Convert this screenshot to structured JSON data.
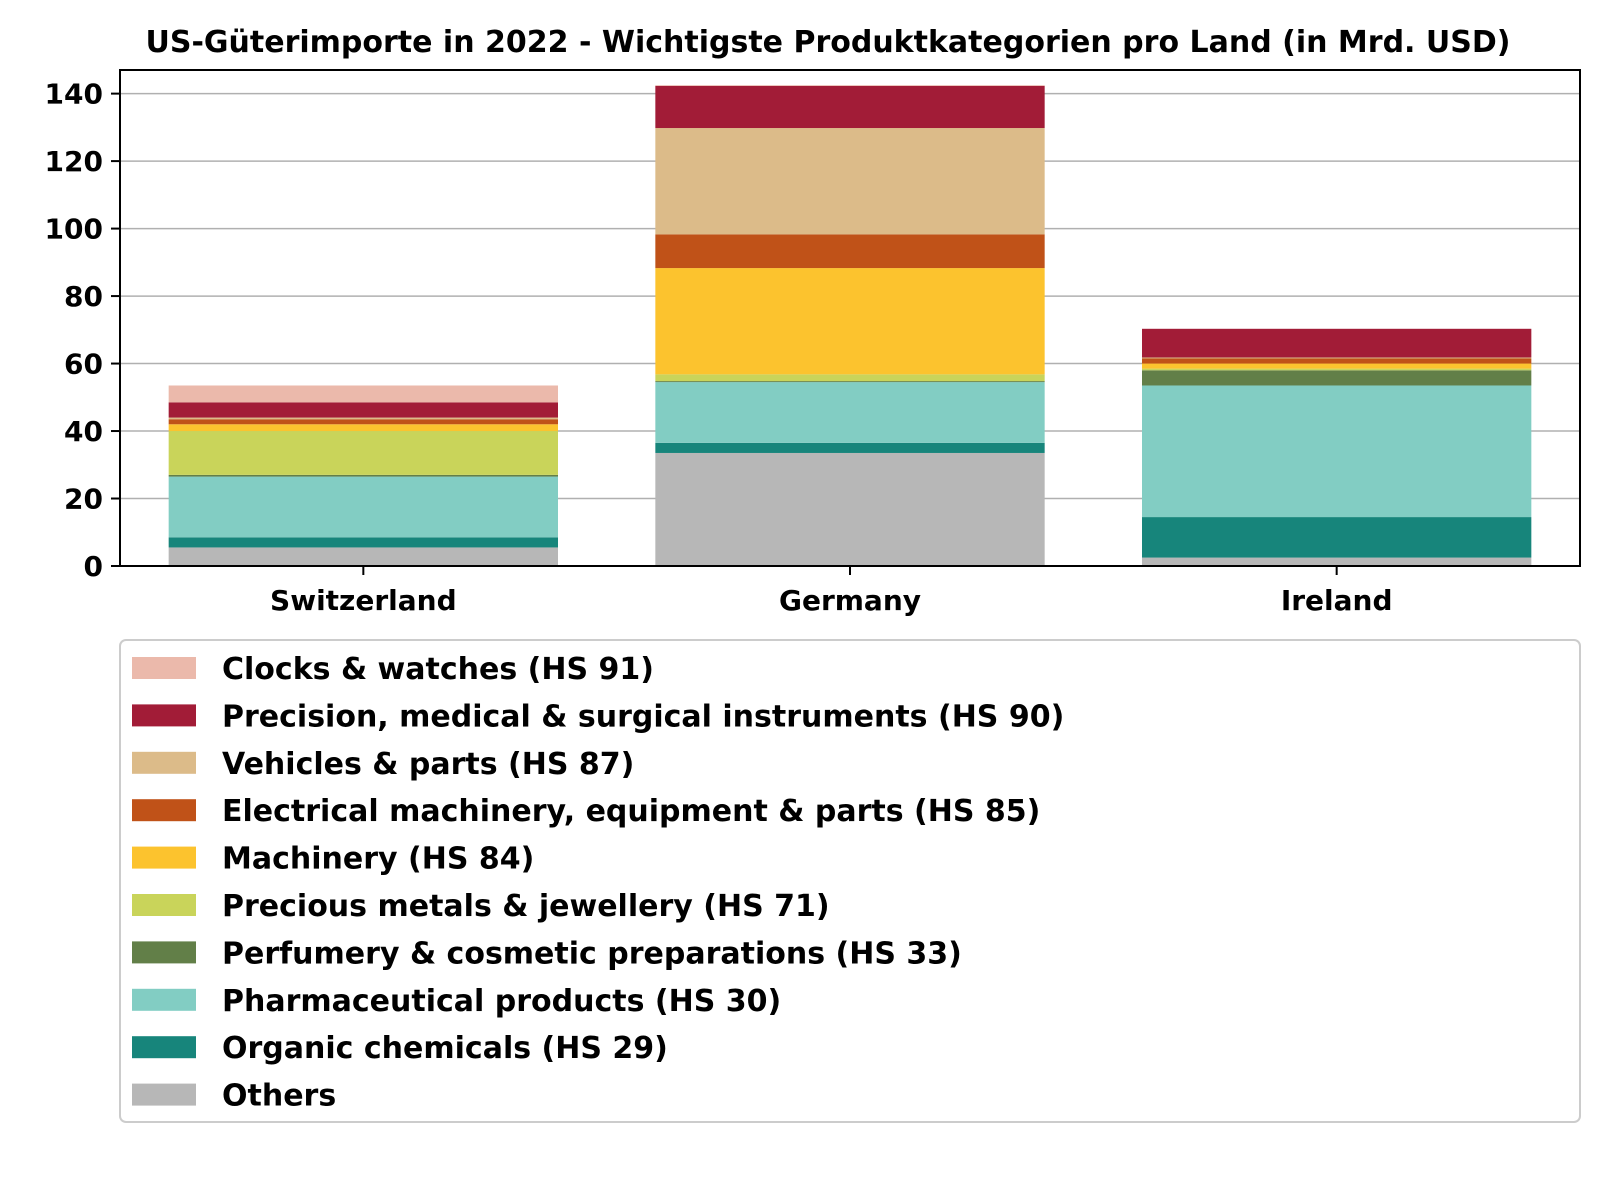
{
  "chart_data": {
    "type": "bar",
    "stacked": true,
    "title": "US-Güterimporte in 2022 - Wichtigste Produktkategorien pro Land (in Mrd. USD)",
    "xlabel": "",
    "ylabel": "",
    "categories": [
      "Switzerland",
      "Germany",
      "Ireland"
    ],
    "ylim": [
      0,
      147
    ],
    "yticks": [
      0,
      20,
      40,
      60,
      80,
      100,
      120,
      140
    ],
    "grid": true,
    "legend_position": "below",
    "series": [
      {
        "name": "Others",
        "color": "#b7b7b7",
        "values": [
          5.5,
          33.5,
          2.5
        ]
      },
      {
        "name": "Organic chemicals (HS 29)",
        "color": "#17857b",
        "values": [
          3.0,
          3.0,
          12.0
        ]
      },
      {
        "name": "Pharmaceutical products (HS 30)",
        "color": "#82cdc3",
        "values": [
          18.0,
          18.0,
          39.0
        ]
      },
      {
        "name": "Perfumery & cosmetic preparations (HS 33)",
        "color": "#627f48",
        "values": [
          0.5,
          0.3,
          4.5
        ]
      },
      {
        "name": "Precious metals & jewellery (HS 71)",
        "color": "#c9d45a",
        "values": [
          13.0,
          2.0,
          0.5
        ]
      },
      {
        "name": "Machinery (HS 84)",
        "color": "#fcc32e",
        "values": [
          2.0,
          31.5,
          1.5
        ]
      },
      {
        "name": "Electrical machinery, equipment & parts (HS 85)",
        "color": "#c05218",
        "values": [
          1.5,
          10.0,
          1.5
        ]
      },
      {
        "name": "Vehicles & parts (HS 87)",
        "color": "#dcbb89",
        "values": [
          0.5,
          31.5,
          0.3
        ]
      },
      {
        "name": "Precision, medical & surgical instruments (HS 90)",
        "color": "#a21c37",
        "values": [
          4.5,
          12.5,
          8.5
        ]
      },
      {
        "name": "Clocks & watches (HS 91)",
        "color": "#ebb9ab",
        "values": [
          5.0,
          0.2,
          0.0
        ]
      }
    ]
  }
}
